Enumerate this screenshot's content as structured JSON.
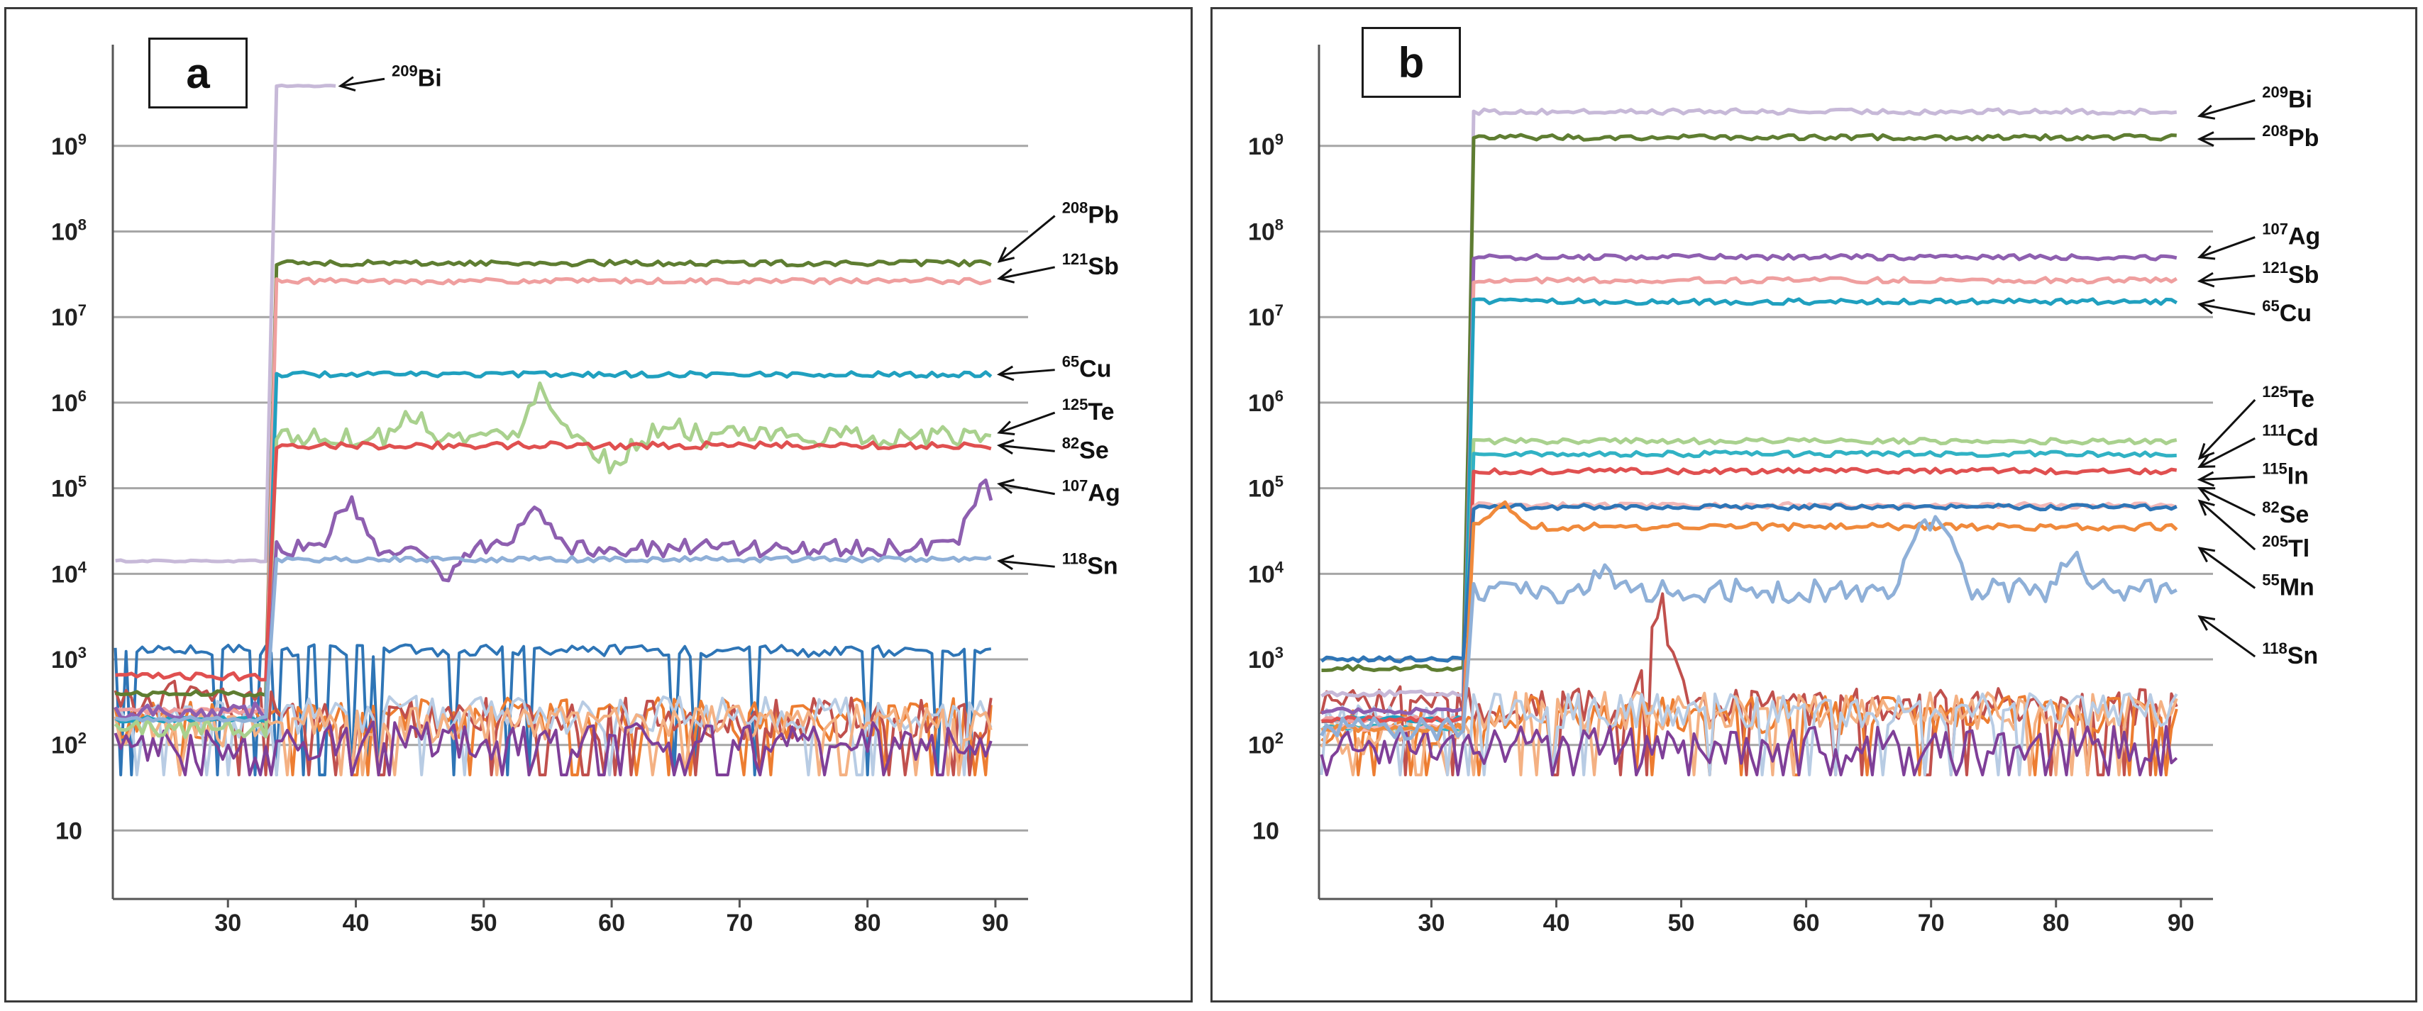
{
  "chart_data": [
    {
      "type": "line",
      "panel_label": "a",
      "x_ticks": [
        "30",
        "40",
        "50",
        "60",
        "70",
        "80",
        "90"
      ],
      "y_ticks": [
        {
          "base": "10",
          "exp": "9"
        },
        {
          "base": "10",
          "exp": "8"
        },
        {
          "base": "10",
          "exp": "7"
        },
        {
          "base": "10",
          "exp": "6"
        },
        {
          "base": "10",
          "exp": "5"
        },
        {
          "base": "10",
          "exp": "4"
        },
        {
          "base": "10",
          "exp": "3"
        },
        {
          "base": "10",
          "exp": "2"
        },
        {
          "base": "10",
          "exp": ""
        }
      ],
      "xlim": [
        21,
        92
      ],
      "ylim_log10": [
        0.2,
        10.1
      ],
      "onset_x": 33.2,
      "series": [
        {
          "name": "209Bi",
          "color": "#c7b9d8",
          "pre": 4.15,
          "post": 9.7,
          "end": 38.5,
          "noise": 0.01,
          "spikes": []
        },
        {
          "name": "208Pb",
          "color": "#5e7d31",
          "pre": 2.6,
          "post": 7.63,
          "noise": 0.03,
          "spikes": []
        },
        {
          "name": "121Sb",
          "color": "#ef9f9f",
          "pre": 2.4,
          "post": 7.42,
          "noise": 0.03,
          "spikes": []
        },
        {
          "name": "65Cu",
          "color": "#20a0bf",
          "pre": 2.3,
          "post": 6.33,
          "noise": 0.03,
          "spikes": []
        },
        {
          "name": "125Te",
          "color": "#a9d18e",
          "pre": 2.2,
          "post": 5.6,
          "noise": 0.12,
          "spikes": [
            [
              44.5,
              5.9
            ],
            [
              54.5,
              6.25
            ],
            [
              60,
              5.25
            ],
            [
              65,
              5.75
            ]
          ]
        },
        {
          "name": "82Se",
          "color": "#e05050",
          "pre": 2.8,
          "post": 5.5,
          "noise": 0.04,
          "spikes": []
        },
        {
          "name": "107Ag",
          "color": "#8e5fb0",
          "pre": 2.4,
          "post": 4.3,
          "noise": 0.1,
          "spikes": [
            [
              39.5,
              4.9
            ],
            [
              47,
              3.85
            ],
            [
              54,
              4.75
            ],
            [
              89,
              5.1
            ]
          ]
        },
        {
          "name": "118Sn",
          "color": "#8fb0d8",
          "pre": 2.3,
          "post": 4.17,
          "noise": 0.03,
          "spikes": []
        },
        {
          "name": "background",
          "color": "#2e75b6",
          "pre": 3.1,
          "post": 3.1,
          "noise": 0.07,
          "spikes": []
        },
        {
          "name": "background",
          "color": "#ed7d31",
          "pre": 2.3,
          "post": 2.3,
          "noise": 0.25,
          "spikes": []
        },
        {
          "name": "background",
          "color": "#c0504d",
          "pre": 2.5,
          "post": 2.3,
          "noise": 0.25,
          "spikes": []
        },
        {
          "name": "background",
          "color": "#b8cce4",
          "pre": 2.3,
          "post": 2.35,
          "noise": 0.22,
          "spikes": []
        },
        {
          "name": "background",
          "color": "#f4b183",
          "pre": 2.2,
          "post": 2.25,
          "noise": 0.22,
          "spikes": []
        },
        {
          "name": "background",
          "color": "#7f3f98",
          "pre": 2.0,
          "post": 2.05,
          "noise": 0.22,
          "spikes": []
        }
      ],
      "annotations": [
        {
          "sup": "209",
          "el": "Bi",
          "tx": 42.8,
          "ty": 9.7,
          "ax": 38.8,
          "ay": 9.7
        },
        {
          "sup": "208",
          "el": "Pb",
          "tx": 95.2,
          "ty": 8.1,
          "ax": 90.3,
          "ay": 7.65
        },
        {
          "sup": "121",
          "el": "Sb",
          "tx": 95.2,
          "ty": 7.5,
          "ax": 90.3,
          "ay": 7.45
        },
        {
          "sup": "65",
          "el": "Cu",
          "tx": 95.2,
          "ty": 6.3,
          "ax": 90.3,
          "ay": 6.33
        },
        {
          "sup": "125",
          "el": "Te",
          "tx": 95.2,
          "ty": 5.8,
          "ax": 90.3,
          "ay": 5.65
        },
        {
          "sup": "82",
          "el": "Se",
          "tx": 95.2,
          "ty": 5.35,
          "ax": 90.3,
          "ay": 5.5
        },
        {
          "sup": "107",
          "el": "Ag",
          "tx": 95.2,
          "ty": 4.85,
          "ax": 90.3,
          "ay": 5.05
        },
        {
          "sup": "118",
          "el": "Sn",
          "tx": 95.2,
          "ty": 4.0,
          "ax": 90.3,
          "ay": 4.15
        }
      ]
    },
    {
      "type": "line",
      "panel_label": "b",
      "x_ticks": [
        "30",
        "40",
        "50",
        "60",
        "70",
        "80",
        "90"
      ],
      "y_ticks": [
        {
          "base": "10",
          "exp": "9"
        },
        {
          "base": "10",
          "exp": "8"
        },
        {
          "base": "10",
          "exp": "7"
        },
        {
          "base": "10",
          "exp": "6"
        },
        {
          "base": "10",
          "exp": "5"
        },
        {
          "base": "10",
          "exp": "4"
        },
        {
          "base": "10",
          "exp": "3"
        },
        {
          "base": "10",
          "exp": "2"
        },
        {
          "base": "10",
          "exp": ""
        }
      ],
      "xlim": [
        21,
        92
      ],
      "ylim_log10": [
        0.2,
        10.1
      ],
      "onset_x": 32.8,
      "series": [
        {
          "name": "209Bi",
          "color": "#c7b9d8",
          "pre": 2.6,
          "post": 9.4,
          "noise": 0.03,
          "spikes": []
        },
        {
          "name": "208Pb",
          "color": "#5e7d31",
          "pre": 2.9,
          "post": 9.1,
          "noise": 0.03,
          "spikes": []
        },
        {
          "name": "107Ag",
          "color": "#8e5fb0",
          "pre": 2.4,
          "post": 7.7,
          "noise": 0.03,
          "spikes": []
        },
        {
          "name": "121Sb",
          "color": "#ef9f9f",
          "pre": 2.3,
          "post": 7.43,
          "noise": 0.03,
          "spikes": []
        },
        {
          "name": "65Cu",
          "color": "#20a0bf",
          "pre": 2.3,
          "post": 7.18,
          "noise": 0.03,
          "spikes": []
        },
        {
          "name": "125Te",
          "color": "#a9d18e",
          "pre": 2.2,
          "post": 5.55,
          "noise": 0.03,
          "spikes": []
        },
        {
          "name": "111Cd",
          "color": "#31b2c4",
          "pre": 2.2,
          "post": 5.4,
          "noise": 0.03,
          "spikes": []
        },
        {
          "name": "115In",
          "color": "#e05050",
          "pre": 2.3,
          "post": 5.2,
          "noise": 0.03,
          "spikes": []
        },
        {
          "name": "82Se",
          "color": "#f2b8b8",
          "pre": 2.2,
          "post": 4.8,
          "noise": 0.03,
          "spikes": []
        },
        {
          "name": "205Tl",
          "color": "#2e75b6",
          "pre": 3.0,
          "post": 4.78,
          "noise": 0.03,
          "spikes": []
        },
        {
          "name": "55Mn",
          "color": "#f08a3c",
          "pre": 2.2,
          "post": 4.55,
          "noise": 0.04,
          "spikes": [
            [
              35.7,
              4.85
            ]
          ]
        },
        {
          "name": "118Sn",
          "color": "#8fb0d8",
          "pre": 2.2,
          "post": 3.8,
          "noise": 0.14,
          "spikes": [
            [
              43.8,
              4.0
            ],
            [
              69,
              4.55
            ],
            [
              71,
              4.5
            ],
            [
              81.5,
              4.2
            ]
          ]
        },
        {
          "name": "background",
          "color": "#c0504d",
          "pre": 2.5,
          "post": 2.45,
          "noise": 0.22,
          "spikes": [
            [
              48.5,
              3.6
            ]
          ]
        },
        {
          "name": "background",
          "color": "#ed7d31",
          "pre": 2.2,
          "post": 2.35,
          "noise": 0.22,
          "spikes": []
        },
        {
          "name": "background",
          "color": "#f4b183",
          "pre": 2.1,
          "post": 2.4,
          "noise": 0.22,
          "spikes": []
        },
        {
          "name": "background",
          "color": "#b8cce4",
          "pre": 2.3,
          "post": 2.4,
          "noise": 0.2,
          "spikes": []
        },
        {
          "name": "background",
          "color": "#7f3f98",
          "pre": 2.0,
          "post": 2.0,
          "noise": 0.22,
          "spikes": []
        }
      ],
      "annotations": [
        {
          "sup": "209",
          "el": "Bi",
          "tx": 96.5,
          "ty": 9.45,
          "ax": 91.5,
          "ay": 9.35
        },
        {
          "sup": "208",
          "el": "Pb",
          "tx": 96.5,
          "ty": 9.0,
          "ax": 91.5,
          "ay": 9.08
        },
        {
          "sup": "107",
          "el": "Ag",
          "tx": 96.5,
          "ty": 7.85,
          "ax": 91.5,
          "ay": 7.7
        },
        {
          "sup": "121",
          "el": "Sb",
          "tx": 96.5,
          "ty": 7.4,
          "ax": 91.5,
          "ay": 7.42
        },
        {
          "sup": "65",
          "el": "Cu",
          "tx": 96.5,
          "ty": 6.95,
          "ax": 91.5,
          "ay": 7.15
        },
        {
          "sup": "125",
          "el": "Te",
          "tx": 96.5,
          "ty": 5.95,
          "ax": 91.5,
          "ay": 5.35
        },
        {
          "sup": "111",
          "el": "Cd",
          "tx": 96.5,
          "ty": 5.5,
          "ax": 91.5,
          "ay": 5.25
        },
        {
          "sup": "115",
          "el": "In",
          "tx": 96.5,
          "ty": 5.05,
          "ax": 91.5,
          "ay": 5.1
        },
        {
          "sup": "82",
          "el": "Se",
          "tx": 96.5,
          "ty": 4.6,
          "ax": 91.5,
          "ay": 5.0
        },
        {
          "sup": "205",
          "el": "Tl",
          "tx": 96.5,
          "ty": 4.2,
          "ax": 91.5,
          "ay": 4.85
        },
        {
          "sup": "55",
          "el": "Mn",
          "tx": 96.5,
          "ty": 3.75,
          "ax": 91.5,
          "ay": 4.3
        },
        {
          "sup": "118",
          "el": "Sn",
          "tx": 96.5,
          "ty": 2.95,
          "ax": 91.5,
          "ay": 3.5
        }
      ]
    }
  ]
}
